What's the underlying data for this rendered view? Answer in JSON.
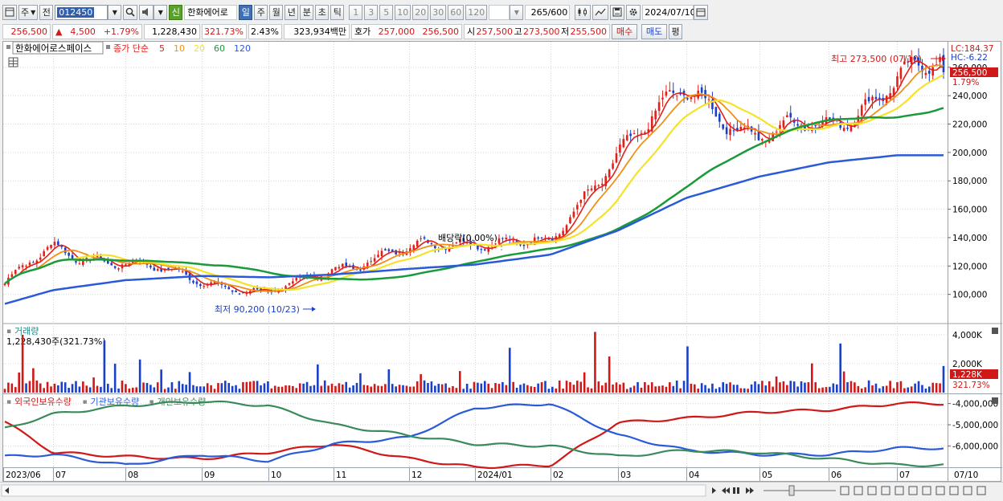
{
  "toolbar": {
    "period_label": "주",
    "prev_label": "전",
    "stock_code": "012450",
    "stock_badge": "신",
    "stock_name": "한화에어로",
    "period_tabs": [
      "일",
      "주",
      "월",
      "년",
      "분",
      "초",
      "틱"
    ],
    "interval_tabs": [
      "1",
      "3",
      "5",
      "10",
      "20",
      "30",
      "60",
      "120"
    ],
    "count_current": "265",
    "count_total": "/600",
    "date": "2024/07/10"
  },
  "quote": {
    "price": "256,500",
    "change_arrow": "▲",
    "change": "4,500",
    "change_pct": "+1.79%",
    "volume": "1,228,430",
    "volume_ratio": "321.73%",
    "turnover": "2.43%",
    "amount": "323,934백만",
    "bid_label": "호가",
    "bid_1": "257,000",
    "bid_2": "256,500",
    "open_label": "시",
    "open": "257,500",
    "high_label": "고",
    "high": "273,500",
    "low_label": "저",
    "low": "255,500",
    "buy_label": "매수",
    "sell_label": "매도",
    "eval_label": "평"
  },
  "price_panel": {
    "title": "한화에어로스페이스",
    "ma_label": "종가 단순",
    "ma_periods": [
      "5",
      "10",
      "20",
      "60",
      "120"
    ],
    "ma_colors": [
      "#e0201a",
      "#f0901a",
      "#f5e22a",
      "#1a9a3a",
      "#2a5ad8"
    ],
    "lc_label": "LC:184.37",
    "hc_label": "HC:-6.22",
    "high_annotation": "최고 273,500 (07/10)",
    "low_annotation": "최저 90,200 (10/23)",
    "dividend_annotation": "배당락(0.00%)",
    "price_tag": "256,500",
    "pct_tag": "1.79%"
  },
  "volume_panel": {
    "title": "거래량",
    "value_label": "1,228,430주(321.73%)",
    "tag_value": "1,228K",
    "tag_pct": "321.73%"
  },
  "holding_panel": {
    "series_labels": [
      "외국인보유수량",
      "기관보유수량",
      "개인보유수량"
    ],
    "series_colors": [
      "#d01818",
      "#2a5ad8",
      "#3a8a5a"
    ]
  },
  "x_labels": [
    "2023/06",
    "07",
    "08",
    "09",
    "10",
    "11",
    "12",
    "2024/01",
    "02",
    "03",
    "04",
    "05",
    "06",
    "07",
    "07/10"
  ],
  "chart_data": [
    {
      "type": "candlestick",
      "title": "한화에어로스페이스",
      "ylabel": "",
      "y_ticks": [
        100000,
        120000,
        140000,
        160000,
        180000,
        200000,
        220000,
        240000,
        260000
      ],
      "y_tick_labels": [
        "100,000",
        "120,000",
        "140,000",
        "160,000",
        "180,000",
        "200,000",
        "220,000",
        "240,000",
        "260,000"
      ],
      "ylim": [
        80000,
        278000
      ],
      "x": [
        "2023/06",
        "07",
        "08",
        "09",
        "10",
        "11",
        "12",
        "2024/01",
        "02",
        "03",
        "04",
        "05",
        "06",
        "07"
      ],
      "close_series": [
        104000,
        135000,
        120000,
        112000,
        98000,
        120000,
        130000,
        140000,
        133000,
        205000,
        240000,
        215000,
        215000,
        256500
      ],
      "ma120_series": [
        93000,
        103000,
        110000,
        113000,
        112000,
        114000,
        118000,
        121000,
        128000,
        145000,
        168000,
        183000,
        193000,
        198000
      ],
      "high_point": {
        "date": "07/10",
        "value": 273500
      },
      "low_point": {
        "date": "10/23",
        "value": 90200
      }
    },
    {
      "type": "bar",
      "title": "거래량",
      "y_tick_labels": [
        "2,000K",
        "4,000K"
      ],
      "ylim": [
        0,
        4500000
      ],
      "last_value": 1228430
    },
    {
      "type": "line",
      "title": "외국인보유수량 / 기관보유수량 / 개인보유수량",
      "y_tick_labels": [
        "-4,000,000",
        "-5,000,000",
        "-6,000,000"
      ],
      "ylim": [
        -7000000,
        -3600000
      ],
      "series": [
        {
          "name": "외국인보유수량",
          "values": [
            -4800000,
            -6300000,
            -6500000,
            -6600000,
            -6300000,
            -5900000,
            -6600000,
            -7000000,
            -6900000,
            -4900000,
            -4700000,
            -4400000,
            -4300000,
            -4000000
          ]
        },
        {
          "name": "기관보유수량",
          "values": [
            -6500000,
            -6400000,
            -6900000,
            -6400000,
            -6700000,
            -5900000,
            -5600000,
            -4200000,
            -4000000,
            -5500000,
            -6200000,
            -6400000,
            -6400000,
            -6100000
          ]
        },
        {
          "name": "개인보유수량",
          "values": [
            -5200000,
            -4500000,
            -4100000,
            -3900000,
            -4100000,
            -5000000,
            -5500000,
            -5900000,
            -6000000,
            -6500000,
            -6200000,
            -6300000,
            -6600000,
            -6900000
          ]
        }
      ]
    }
  ]
}
